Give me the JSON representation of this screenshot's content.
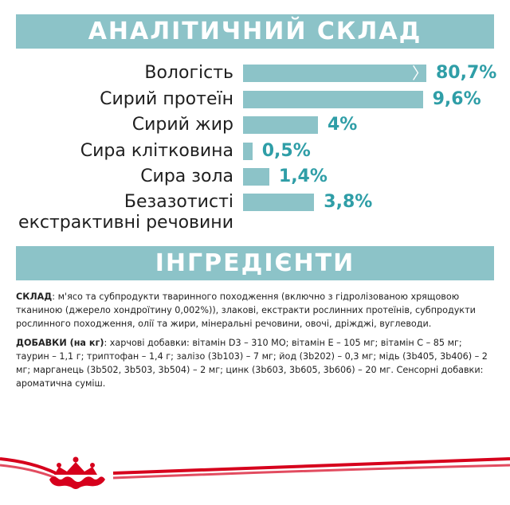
{
  "analysis": {
    "title": "АНАЛІТИЧНИЙ СКЛАД"
  },
  "chart_data": {
    "type": "bar",
    "categories": [
      "Вологість",
      "Сирий протеїн",
      "Сирий жир",
      "Сира клітковина",
      "Сира зола",
      "Безазотисті екстрактивні речовини"
    ],
    "category_lines": [
      [
        "Вологість"
      ],
      [
        "Сирий протеїн"
      ],
      [
        "Сирий жир"
      ],
      [
        "Сира клітковина"
      ],
      [
        "Сира зола"
      ],
      [
        "Безазотисті",
        "екстрактивні речовини"
      ]
    ],
    "values": [
      80.7,
      9.6,
      4,
      0.5,
      1.4,
      3.8
    ],
    "value_labels": [
      "80,7%",
      "9,6%",
      "4%",
      "0,5%",
      "1,4%",
      "3,8%"
    ],
    "bar_color": "#8cc3c8",
    "value_color": "#2f9ea7",
    "truncated_first_bar": true
  },
  "ingredients": {
    "title": "ІНГРЕДІЄНТИ",
    "composition_label": "СКЛАД",
    "composition_text": ": м'ясо та субпродукти тваринного походження (включно з гідролізованою хрящовою тканиною (джерело хондроїтину 0,002%)), злакові, екстракти рослинних протеїнів, субпродукти рослинного походження, олії та жири, мінеральні речовини, овочі, дріжджі, вуглеводи.",
    "additives_label": "ДОБАВКИ (на кг)",
    "additives_text": ": харчові добавки: вітамін D3 – 310 МО; вітамін Е – 105 мг; вітамін С – 85 мг; таурин – 1,1 г; триптофан – 1,4 г; залізо (3b103) – 7 мг; йод (3b202) – 0,3 мг; мідь (3b405, 3b406) – 2 мг; марганець (3b502, 3b503, 3b504) – 2 мг; цинк (3b603, 3b605, 3b606) – 20 мг. Сенсорні добавки: ароматична суміш."
  },
  "brand": {
    "logo_icon": "crown-logo-icon",
    "red": "#d6001c"
  }
}
